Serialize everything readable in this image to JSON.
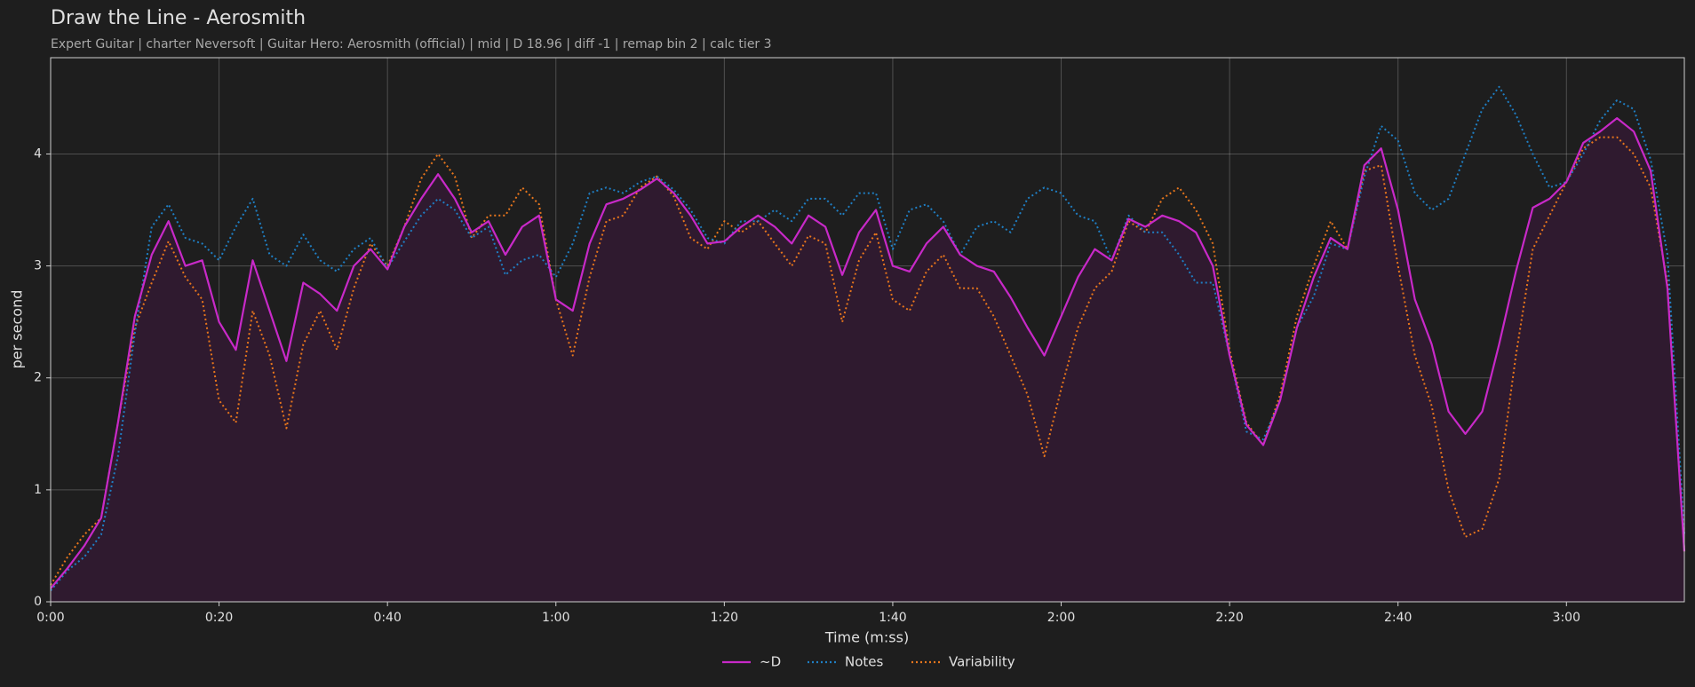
{
  "chart_data": {
    "type": "line",
    "title": "Draw the Line - Aerosmith",
    "subtitle": "Expert Guitar  |  charter Neversoft  |  Guitar Hero: Aerosmith (official)  |  mid  |  D 18.96  |  diff -1  |  remap bin 2  |  calc tier 3",
    "xlabel": "Time (m:ss)",
    "ylabel": "per second",
    "grid": true,
    "legend": "bottom",
    "xlim": [
      0,
      194
    ],
    "ylim": [
      0,
      4.86
    ],
    "xticks": [
      {
        "value": 0,
        "label": "0:00"
      },
      {
        "value": 20,
        "label": "0:20"
      },
      {
        "value": 40,
        "label": "0:40"
      },
      {
        "value": 60,
        "label": "1:00"
      },
      {
        "value": 80,
        "label": "1:20"
      },
      {
        "value": 100,
        "label": "1:40"
      },
      {
        "value": 120,
        "label": "2:00"
      },
      {
        "value": 140,
        "label": "2:20"
      },
      {
        "value": 160,
        "label": "2:40"
      },
      {
        "value": 180,
        "label": "3:00"
      }
    ],
    "yticks": [
      0,
      1,
      2,
      3,
      4
    ],
    "x": [
      0,
      2,
      4,
      6,
      8,
      10,
      12,
      14,
      16,
      18,
      20,
      22,
      24,
      26,
      28,
      30,
      32,
      34,
      36,
      38,
      40,
      42,
      44,
      46,
      48,
      50,
      52,
      54,
      56,
      58,
      60,
      62,
      64,
      66,
      68,
      70,
      72,
      74,
      76,
      78,
      80,
      82,
      84,
      86,
      88,
      90,
      92,
      94,
      96,
      98,
      100,
      102,
      104,
      106,
      108,
      110,
      112,
      114,
      116,
      118,
      120,
      122,
      124,
      126,
      128,
      130,
      132,
      134,
      136,
      138,
      140,
      142,
      144,
      146,
      148,
      150,
      152,
      154,
      156,
      158,
      160,
      162,
      164,
      166,
      168,
      170,
      172,
      174,
      176,
      178,
      180,
      182,
      184,
      186,
      188,
      190,
      192,
      194
    ],
    "series": [
      {
        "name": "~D",
        "color": "#c829c8",
        "dash": "solid",
        "fill": "#2f1a2f",
        "values": [
          0.12,
          0.3,
          0.5,
          0.75,
          1.6,
          2.55,
          3.1,
          3.4,
          3.0,
          3.05,
          2.5,
          2.25,
          3.05,
          2.6,
          2.15,
          2.85,
          2.75,
          2.6,
          3.0,
          3.15,
          2.97,
          3.35,
          3.6,
          3.82,
          3.6,
          3.3,
          3.4,
          3.1,
          3.35,
          3.45,
          2.7,
          2.6,
          3.2,
          3.55,
          3.6,
          3.68,
          3.78,
          3.65,
          3.45,
          3.2,
          3.22,
          3.35,
          3.45,
          3.35,
          3.2,
          3.45,
          3.35,
          2.92,
          3.3,
          3.5,
          3.0,
          2.95,
          3.2,
          3.35,
          3.1,
          3.0,
          2.95,
          2.72,
          2.45,
          2.2,
          2.55,
          2.9,
          3.15,
          3.05,
          3.42,
          3.35,
          3.45,
          3.4,
          3.3,
          3.0,
          2.2,
          1.58,
          1.4,
          1.8,
          2.45,
          2.9,
          3.25,
          3.15,
          3.9,
          4.05,
          3.5,
          2.7,
          2.3,
          1.7,
          1.5,
          1.7,
          2.3,
          2.95,
          3.52,
          3.6,
          3.75,
          4.1,
          4.2,
          4.32,
          4.2,
          3.85,
          2.8,
          0.45
        ]
      },
      {
        "name": "Notes",
        "color": "#1f7fc4",
        "dash": "dotted",
        "values": [
          0.1,
          0.28,
          0.4,
          0.6,
          1.3,
          2.4,
          3.35,
          3.55,
          3.25,
          3.2,
          3.05,
          3.35,
          3.6,
          3.1,
          3.0,
          3.28,
          3.05,
          2.95,
          3.15,
          3.25,
          2.98,
          3.22,
          3.45,
          3.6,
          3.5,
          3.25,
          3.35,
          2.92,
          3.05,
          3.1,
          2.9,
          3.2,
          3.65,
          3.7,
          3.65,
          3.75,
          3.8,
          3.68,
          3.5,
          3.25,
          3.2,
          3.4,
          3.4,
          3.5,
          3.4,
          3.6,
          3.6,
          3.45,
          3.65,
          3.65,
          3.15,
          3.5,
          3.55,
          3.4,
          3.1,
          3.35,
          3.4,
          3.3,
          3.6,
          3.7,
          3.65,
          3.45,
          3.4,
          3.05,
          3.45,
          3.3,
          3.3,
          3.1,
          2.85,
          2.85,
          2.2,
          1.52,
          1.45,
          1.8,
          2.45,
          2.73,
          3.2,
          3.15,
          3.8,
          4.25,
          4.12,
          3.65,
          3.5,
          3.6,
          4.0,
          4.4,
          4.6,
          4.35,
          4.0,
          3.7,
          3.75,
          4.0,
          4.3,
          4.48,
          4.4,
          3.95,
          3.1,
          0.6
        ]
      },
      {
        "name": "Variability",
        "color": "#e8761c",
        "dash": "dotted",
        "values": [
          0.15,
          0.4,
          0.6,
          0.75,
          1.6,
          2.45,
          2.85,
          3.22,
          2.9,
          2.7,
          1.8,
          1.6,
          2.6,
          2.2,
          1.55,
          2.3,
          2.6,
          2.25,
          2.8,
          3.2,
          3.0,
          3.35,
          3.78,
          4.0,
          3.8,
          3.25,
          3.45,
          3.45,
          3.7,
          3.55,
          2.7,
          2.2,
          2.9,
          3.4,
          3.45,
          3.7,
          3.8,
          3.62,
          3.25,
          3.15,
          3.4,
          3.3,
          3.4,
          3.2,
          3.0,
          3.27,
          3.2,
          2.5,
          3.05,
          3.3,
          2.7,
          2.6,
          2.95,
          3.1,
          2.8,
          2.8,
          2.55,
          2.2,
          1.85,
          1.3,
          1.9,
          2.45,
          2.8,
          2.95,
          3.4,
          3.3,
          3.6,
          3.7,
          3.5,
          3.2,
          2.25,
          1.6,
          1.4,
          1.85,
          2.55,
          3.0,
          3.4,
          3.15,
          3.85,
          3.9,
          3.0,
          2.2,
          1.75,
          1.0,
          0.58,
          0.65,
          1.1,
          2.2,
          3.15,
          3.45,
          3.75,
          4.05,
          4.15,
          4.15,
          4.0,
          3.7,
          2.85,
          0.45
        ]
      }
    ]
  }
}
